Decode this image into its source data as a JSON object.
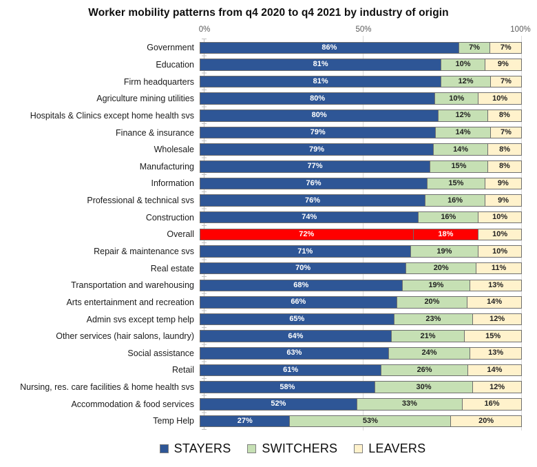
{
  "title": "Worker mobility patterns from q4 2020 to q4 2021 by industry of origin",
  "axis": {
    "ticks": [
      "0%",
      "50%",
      "100%"
    ]
  },
  "legend": [
    {
      "label": "STAYERS",
      "color": "#2e5696"
    },
    {
      "label": "SWITCHERS",
      "color": "#c6e0b4"
    },
    {
      "label": "LEAVERS",
      "color": "#fff2cc"
    }
  ],
  "colors": {
    "stayers": "#2e5696",
    "switchers": "#c6e0b4",
    "leavers": "#fff2cc",
    "highlight": "#ff0000",
    "gridline": "#d9d9d9",
    "axis_text": "#595959"
  },
  "chart_data": {
    "type": "bar",
    "orientation": "horizontal",
    "stacked": true,
    "title": "Worker mobility patterns from q4 2020 to q4 2021 by industry of origin",
    "xlabel": "",
    "ylabel": "",
    "xlim": [
      0,
      100
    ],
    "x_ticks": [
      "0%",
      "50%",
      "100%"
    ],
    "grid": "vertical",
    "legend_position": "bottom",
    "value_label_format": "percent",
    "highlight_category": "Overall",
    "highlight_color": "#ff0000",
    "categories": [
      "Government",
      "Education",
      "Firm headquarters",
      "Agriculture mining utilities",
      "Hospitals & Clinics except home health svs",
      "Finance & insurance",
      "Wholesale",
      "Manufacturing",
      "Information",
      "Professional & technical svs",
      "Construction",
      "Overall",
      "Repair & maintenance svs",
      "Real estate",
      "Transportation and warehousing",
      "Arts entertainment and recreation",
      "Admin svs except temp help",
      "Other services (hair salons, laundry)",
      "Social assistance",
      "Retail",
      "Nursing, res. care facilities & home health svs",
      "Accommodation & food services",
      "Temp Help"
    ],
    "series": [
      {
        "name": "STAYERS",
        "color": "#2e5696",
        "values": [
          86,
          81,
          81,
          80,
          80,
          79,
          79,
          77,
          76,
          76,
          74,
          72,
          71,
          70,
          68,
          66,
          65,
          64,
          63,
          61,
          58,
          52,
          27
        ]
      },
      {
        "name": "SWITCHERS",
        "color": "#c6e0b4",
        "values": [
          7,
          10,
          12,
          10,
          12,
          14,
          14,
          15,
          15,
          16,
          16,
          18,
          19,
          20,
          19,
          20,
          23,
          21,
          24,
          26,
          30,
          33,
          53
        ]
      },
      {
        "name": "LEAVERS",
        "color": "#fff2cc",
        "values": [
          7,
          9,
          7,
          10,
          8,
          7,
          8,
          8,
          9,
          9,
          10,
          10,
          10,
          11,
          13,
          14,
          12,
          15,
          13,
          14,
          12,
          16,
          20
        ]
      }
    ]
  }
}
